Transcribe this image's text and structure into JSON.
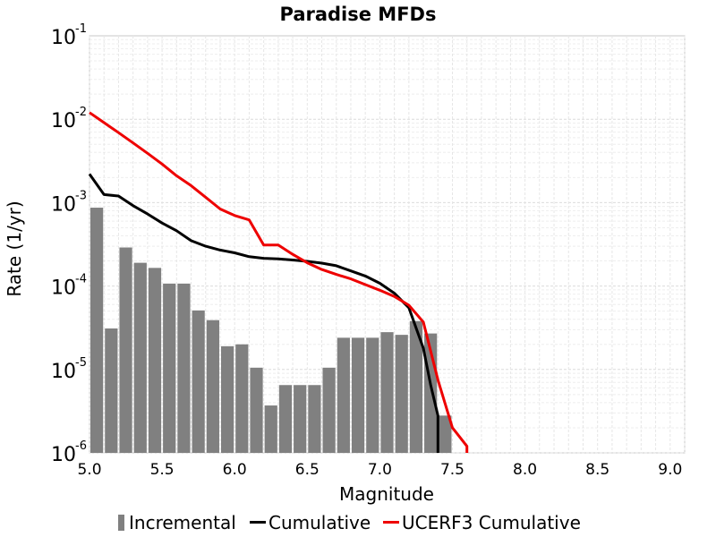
{
  "chart_data": {
    "type": "bar",
    "title": "Paradise MFDs",
    "xlabel": "Magnitude",
    "ylabel": "Rate (1/yr)",
    "xlim": [
      5.0,
      9.1
    ],
    "ylim": [
      1e-06,
      0.1
    ],
    "yscale": "log",
    "grid": true,
    "legend_position": "bottom",
    "x_ticks": [
      "5.0",
      "5.5",
      "6.0",
      "6.5",
      "7.0",
      "7.5",
      "8.0",
      "8.5",
      "9.0"
    ],
    "y_ticks": [
      {
        "base": "10",
        "exp": "-6",
        "value": 1e-06
      },
      {
        "base": "10",
        "exp": "-5",
        "value": 1e-05
      },
      {
        "base": "10",
        "exp": "-4",
        "value": 0.0001
      },
      {
        "base": "10",
        "exp": "-3",
        "value": 0.001
      },
      {
        "base": "10",
        "exp": "-2",
        "value": 0.01
      },
      {
        "base": "10",
        "exp": "-1",
        "value": 0.1
      }
    ],
    "series": [
      {
        "name": "Incremental",
        "kind": "bar",
        "color": "#808080",
        "x": [
          5.05,
          5.15,
          5.25,
          5.35,
          5.45,
          5.55,
          5.65,
          5.75,
          5.85,
          5.95,
          6.05,
          6.15,
          6.25,
          6.35,
          6.45,
          6.55,
          6.65,
          6.75,
          6.85,
          6.95,
          7.05,
          7.15,
          7.25,
          7.35,
          7.45
        ],
        "y": [
          0.00087,
          3.1e-05,
          0.00029,
          0.00019,
          0.000165,
          0.000107,
          0.000107,
          5.1e-05,
          3.9e-05,
          1.9e-05,
          2e-05,
          1.05e-05,
          3.7e-06,
          6.5e-06,
          6.5e-06,
          6.5e-06,
          1.05e-05,
          2.4e-05,
          2.4e-05,
          2.4e-05,
          2.8e-05,
          2.6e-05,
          3.8e-05,
          2.7e-05,
          2.8e-06
        ]
      },
      {
        "name": "Cumulative",
        "kind": "line",
        "color": "#000000",
        "x": [
          5.0,
          5.1,
          5.2,
          5.3,
          5.4,
          5.5,
          5.6,
          5.7,
          5.8,
          5.9,
          6.0,
          6.1,
          6.2,
          6.3,
          6.4,
          6.5,
          6.6,
          6.7,
          6.8,
          6.9,
          7.0,
          7.1,
          7.2,
          7.3,
          7.35,
          7.4,
          7.4
        ],
        "y": [
          0.0022,
          0.00125,
          0.0012,
          0.00092,
          0.00073,
          0.00057,
          0.00046,
          0.00035,
          0.0003,
          0.00027,
          0.00025,
          0.000225,
          0.000215,
          0.000212,
          0.000205,
          0.000198,
          0.000188,
          0.000175,
          0.000152,
          0.000132,
          0.000108,
          8.2e-05,
          5.5e-05,
          1.8e-05,
          6.5e-06,
          2.8e-06,
          1e-06
        ]
      },
      {
        "name": "UCERF3 Cumulative",
        "kind": "line",
        "color": "#ee0000",
        "x": [
          5.0,
          5.1,
          5.2,
          5.3,
          5.4,
          5.5,
          5.6,
          5.7,
          5.8,
          5.9,
          6.0,
          6.1,
          6.2,
          6.3,
          6.4,
          6.5,
          6.6,
          6.7,
          6.8,
          6.9,
          7.0,
          7.1,
          7.2,
          7.3,
          7.4,
          7.5,
          7.6,
          7.6
        ],
        "y": [
          0.012,
          0.0091,
          0.0069,
          0.0052,
          0.0039,
          0.0029,
          0.0021,
          0.0016,
          0.00116,
          0.00084,
          0.0007,
          0.00062,
          0.00031,
          0.00031,
          0.00024,
          0.00019,
          0.000158,
          0.000138,
          0.000122,
          0.000104,
          8.9e-05,
          7.5e-05,
          5.9e-05,
          3.7e-05,
          7.5e-06,
          2e-06,
          1.2e-06,
          1e-06
        ]
      }
    ]
  }
}
